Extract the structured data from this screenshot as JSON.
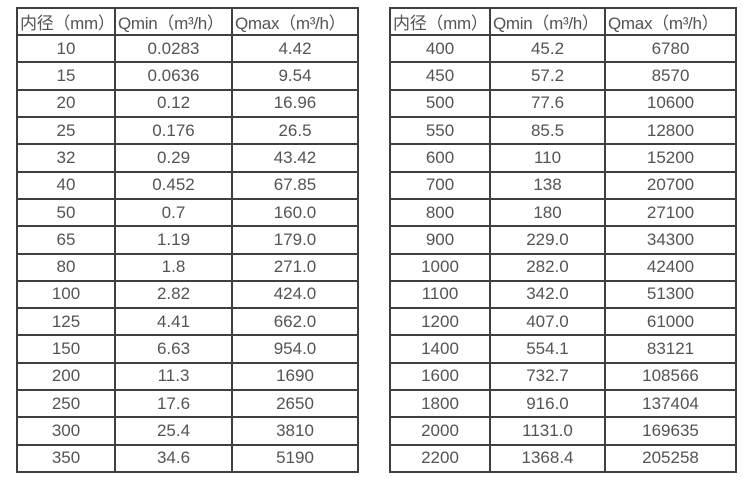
{
  "colors": {
    "background": "#ffffff",
    "border": "#3f3f3f",
    "text": "#545454"
  },
  "tables": [
    {
      "name": "flow-range-table-small-diameters",
      "headers": [
        "内径（mm）",
        "Qmin（m³/h）",
        "Qmax（m³/h）"
      ],
      "rows": [
        [
          "10",
          "0.0283",
          "4.42"
        ],
        [
          "15",
          "0.0636",
          "9.54"
        ],
        [
          "20",
          "0.12",
          "16.96"
        ],
        [
          "25",
          "0.176",
          "26.5"
        ],
        [
          "32",
          "0.29",
          "43.42"
        ],
        [
          "40",
          "0.452",
          "67.85"
        ],
        [
          "50",
          "0.7",
          "160.0"
        ],
        [
          "65",
          "1.19",
          "179.0"
        ],
        [
          "80",
          "1.8",
          "271.0"
        ],
        [
          "100",
          "2.82",
          "424.0"
        ],
        [
          "125",
          "4.41",
          "662.0"
        ],
        [
          "150",
          "6.63",
          "954.0"
        ],
        [
          "200",
          "11.3",
          "1690"
        ],
        [
          "250",
          "17.6",
          "2650"
        ],
        [
          "300",
          "25.4",
          "3810"
        ],
        [
          "350",
          "34.6",
          "5190"
        ]
      ]
    },
    {
      "name": "flow-range-table-large-diameters",
      "headers": [
        "内径（mm）",
        "Qmin（m³/h）",
        "Qmax（m³/h）"
      ],
      "rows": [
        [
          "400",
          "45.2",
          "6780"
        ],
        [
          "450",
          "57.2",
          "8570"
        ],
        [
          "500",
          "77.6",
          "10600"
        ],
        [
          "550",
          "85.5",
          "12800"
        ],
        [
          "600",
          "110",
          "15200"
        ],
        [
          "700",
          "138",
          "20700"
        ],
        [
          "800",
          "180",
          "27100"
        ],
        [
          "900",
          "229.0",
          "34300"
        ],
        [
          "1000",
          "282.0",
          "42400"
        ],
        [
          "1100",
          "342.0",
          "51300"
        ],
        [
          "1200",
          "407.0",
          "61000"
        ],
        [
          "1400",
          "554.1",
          "83121"
        ],
        [
          "1600",
          "732.7",
          "108566"
        ],
        [
          "1800",
          "916.0",
          "137404"
        ],
        [
          "2000",
          "1131.0",
          "169635"
        ],
        [
          "2200",
          "1368.4",
          "205258"
        ]
      ]
    }
  ]
}
